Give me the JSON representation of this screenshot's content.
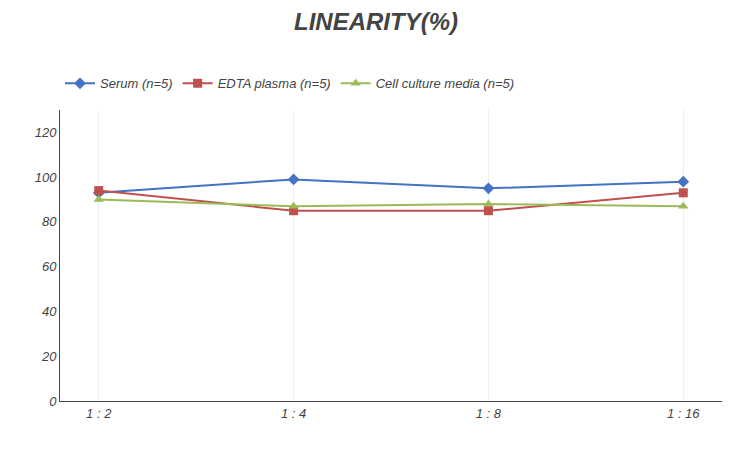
{
  "chart_data": {
    "type": "line",
    "title": "LINEARITY(%)",
    "categories": [
      "1 : 2",
      "1 : 4",
      "1 : 8",
      "1 : 16"
    ],
    "series": [
      {
        "name": "Serum (n=5)",
        "color": "#4472C4",
        "marker": "diamond",
        "values": [
          93,
          99,
          95,
          98
        ]
      },
      {
        "name": "EDTA plasma (n=5)",
        "color": "#C0504D",
        "marker": "square",
        "values": [
          94,
          85,
          85,
          93
        ]
      },
      {
        "name": "Cell culture media (n=5)",
        "color": "#9BBB59",
        "marker": "triangle-up",
        "values": [
          90,
          87,
          88,
          87
        ]
      }
    ],
    "ylim": [
      0,
      130
    ],
    "yticks": [
      0,
      20,
      40,
      60,
      80,
      100,
      120
    ],
    "grid": "x",
    "legend": "top"
  }
}
